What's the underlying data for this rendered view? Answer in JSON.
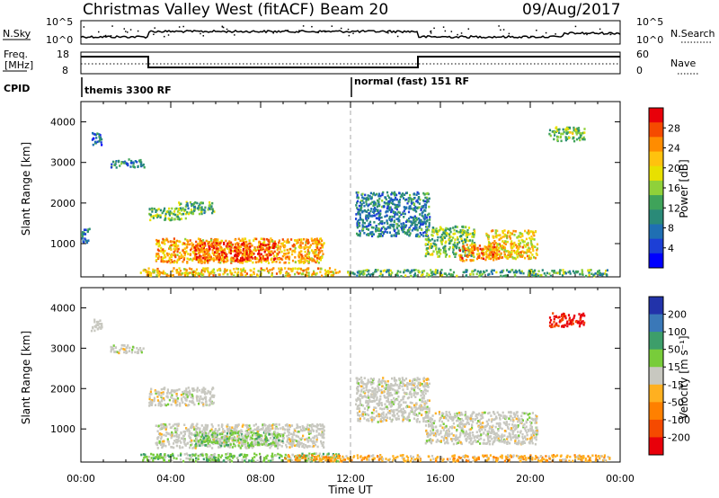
{
  "header": {
    "station": "Christmas Valley West (fitACF)",
    "beam": "Beam 20",
    "date": "09/Aug/2017"
  },
  "strip": {
    "nsky_label": "N.Sky",
    "nsky_ticks": [
      "10^5",
      "10^0"
    ],
    "nsearch_label": "N.Search",
    "nsearch_ticks": [
      "10^5",
      "10^0"
    ],
    "freq_label_1": "Freq.",
    "freq_label_2": "[MHz]",
    "freq_ticks": [
      "18",
      "8"
    ],
    "nave_label": "Nave",
    "nave_ticks": [
      "60",
      "0"
    ],
    "cpid_label": "CPID",
    "cpid_modes": [
      {
        "name": "themis 3300 RF",
        "start_hour": 0
      },
      {
        "name": "normal (fast) 151 RF",
        "start_hour": 12
      }
    ],
    "freq_steps": [
      {
        "from_hour": 0,
        "to_hour": 3.0,
        "level": "high"
      },
      {
        "from_hour": 3.0,
        "to_hour": 15.0,
        "level": "low"
      },
      {
        "from_hour": 15.0,
        "to_hour": 24,
        "level": "high"
      }
    ]
  },
  "chart_data": [
    {
      "type": "heatmap",
      "parameter": "Power",
      "colorbar_label": "Power [dB]",
      "colorbar_ticks": [
        "28",
        "24",
        "20",
        "16",
        "12",
        "8",
        "4"
      ],
      "colorbar_colors": [
        "#e8000a",
        "#f54a00",
        "#ff8c00",
        "#ffc20e",
        "#e8e000",
        "#8fd13a",
        "#3fa35a",
        "#2a8a78",
        "#1f6fb3",
        "#1c3fd6",
        "#0000ff"
      ],
      "xlabel": "Time UT",
      "ylabel": "Slant Range [km]",
      "x_ticks": [
        "00:00",
        "04:00",
        "08:00",
        "12:00",
        "16:00",
        "20:00",
        "00:00"
      ],
      "xlim_hours": [
        0,
        24
      ],
      "y_ticks": [
        "4000",
        "3000",
        "2000",
        "1000"
      ],
      "ylim_km": [
        180,
        4500
      ],
      "regions": [
        {
          "t0": 0.4,
          "t1": 0.9,
          "r0": 3450,
          "r1": 3750,
          "level": 6
        },
        {
          "t0": 1.3,
          "t1": 2.8,
          "r0": 2900,
          "r1": 3100,
          "level": 8
        },
        {
          "t0": 3.0,
          "t1": 4.7,
          "r0": 1600,
          "r1": 1900,
          "level": 14
        },
        {
          "t0": 4.3,
          "t1": 5.9,
          "r0": 1750,
          "r1": 2050,
          "level": 12
        },
        {
          "t0": 3.3,
          "t1": 10.8,
          "r0": 550,
          "r1": 1150,
          "level": 22
        },
        {
          "t0": 5.0,
          "t1": 8.6,
          "r0": 600,
          "r1": 1050,
          "level": 27
        },
        {
          "t0": 2.6,
          "t1": 11.5,
          "r0": 180,
          "r1": 420,
          "level": 20
        },
        {
          "t0": 11.8,
          "t1": 23.5,
          "r0": 180,
          "r1": 380,
          "level": 12
        },
        {
          "t0": 12.2,
          "t1": 15.5,
          "r0": 1200,
          "r1": 2300,
          "level": 8
        },
        {
          "t0": 15.3,
          "t1": 17.5,
          "r0": 700,
          "r1": 1450,
          "level": 14
        },
        {
          "t0": 18.0,
          "t1": 20.3,
          "r0": 650,
          "r1": 1350,
          "level": 20
        },
        {
          "t0": 16.8,
          "t1": 18.6,
          "r0": 600,
          "r1": 1000,
          "level": 24
        },
        {
          "t0": 20.8,
          "t1": 22.4,
          "r0": 3550,
          "r1": 3900,
          "level": 14
        },
        {
          "t0": 0.0,
          "t1": 0.4,
          "r0": 1050,
          "r1": 1400,
          "level": 8
        }
      ]
    },
    {
      "type": "heatmap",
      "parameter": "Velocity",
      "colorbar_label": "Velocity [m s⁻¹]",
      "colorbar_ticks": [
        "200",
        "100",
        "50",
        "15",
        "-15",
        "-50",
        "-100",
        "-200"
      ],
      "colorbar_colors": [
        "#2233aa",
        "#3a78b8",
        "#3d9e6a",
        "#78cc3a",
        "#c8c8c0",
        "#ffb020",
        "#ff8000",
        "#f54a00",
        "#e8000a"
      ],
      "xlabel": "Time UT",
      "ylabel": "Slant Range [km]",
      "x_ticks": [
        "00:00",
        "04:00",
        "08:00",
        "12:00",
        "16:00",
        "20:00",
        "00:00"
      ],
      "xlim_hours": [
        0,
        24
      ],
      "y_ticks": [
        "4000",
        "3000",
        "2000",
        "1000"
      ],
      "ylim_km": [
        180,
        4500
      ],
      "regions": [
        {
          "t0": 0.4,
          "t1": 0.9,
          "r0": 3450,
          "r1": 3750,
          "vel": 0
        },
        {
          "t0": 1.3,
          "t1": 2.8,
          "r0": 2900,
          "r1": 3100,
          "vel": 0
        },
        {
          "t0": 3.0,
          "t1": 5.9,
          "r0": 1600,
          "r1": 2050,
          "vel": 0
        },
        {
          "t0": 3.3,
          "t1": 10.8,
          "r0": 550,
          "r1": 1150,
          "vel": 0
        },
        {
          "t0": 5.0,
          "t1": 9.0,
          "r0": 600,
          "r1": 950,
          "vel": 40
        },
        {
          "t0": 2.6,
          "t1": 11.5,
          "r0": 180,
          "r1": 420,
          "vel": 30
        },
        {
          "t0": 9.0,
          "t1": 23.5,
          "r0": 180,
          "r1": 380,
          "vel": -40
        },
        {
          "t0": 12.2,
          "t1": 15.5,
          "r0": 1200,
          "r1": 2300,
          "vel": 0
        },
        {
          "t0": 15.3,
          "t1": 20.3,
          "r0": 650,
          "r1": 1450,
          "vel": 0
        },
        {
          "t0": 20.8,
          "t1": 22.4,
          "r0": 3550,
          "r1": 3900,
          "vel": -250
        }
      ]
    }
  ]
}
